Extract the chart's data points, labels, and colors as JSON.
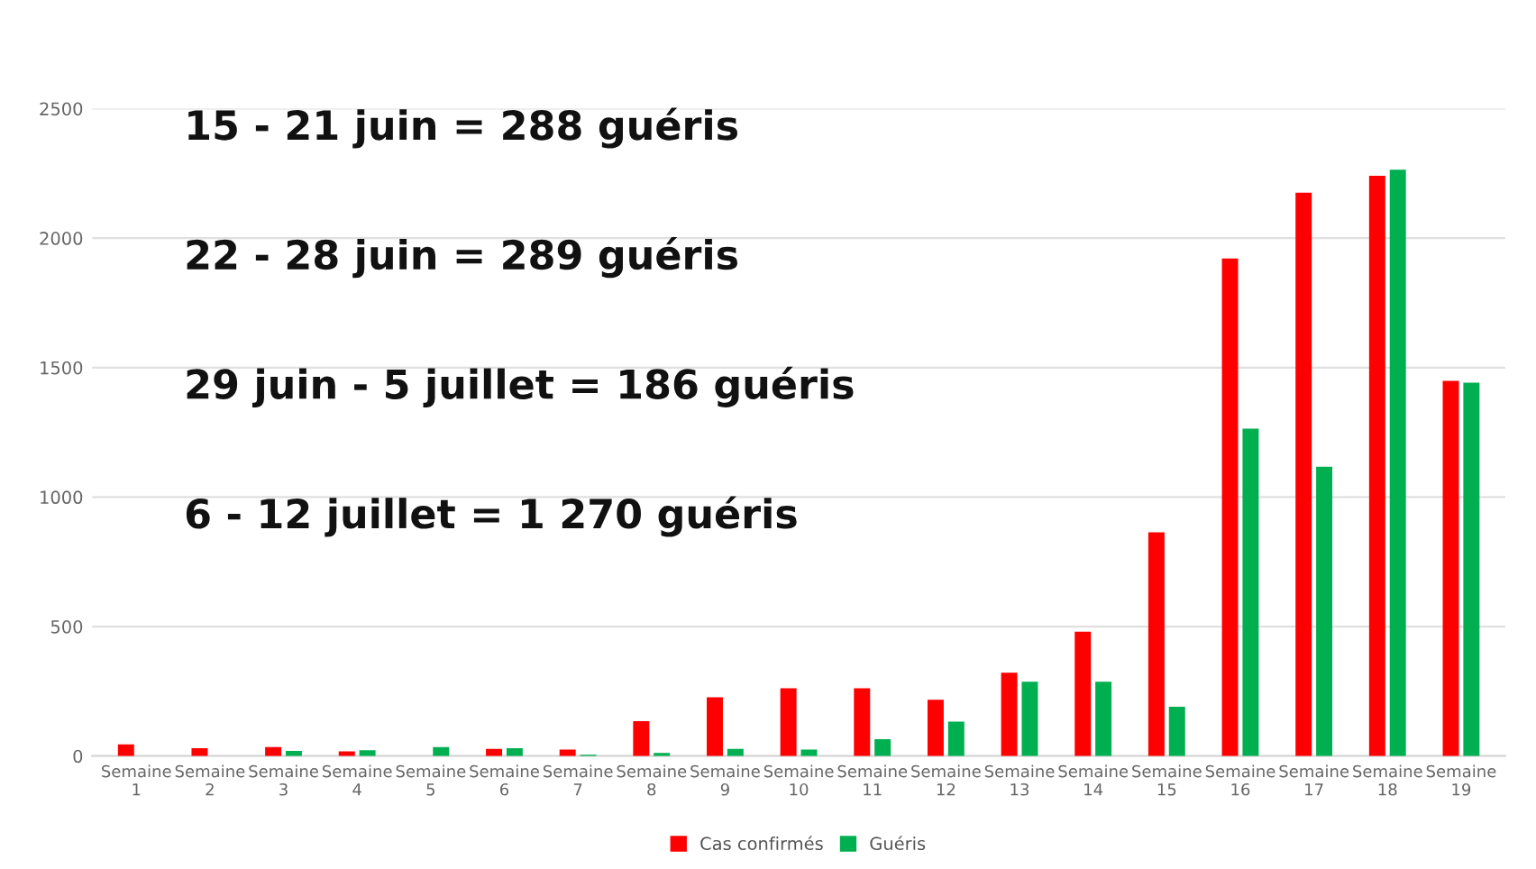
{
  "chart_data": {
    "type": "bar",
    "categories": [
      "Semaine\n1",
      "Semaine\n2",
      "Semaine\n3",
      "Semaine\n4",
      "Semaine\n5",
      "Semaine\n6",
      "Semaine\n7",
      "Semaine\n8",
      "Semaine\n9",
      "Semaine\n10",
      "Semaine\n11",
      "Semaine\n12",
      "Semaine\n13",
      "Semaine\n14",
      "Semaine\n15",
      "Semaine\n16",
      "Semaine\n17",
      "Semaine\n18",
      "Semaine\n19"
    ],
    "series": [
      {
        "name": "Cas confirmés",
        "color": "#ff0000",
        "values": [
          45,
          30,
          35,
          18,
          null,
          28,
          25,
          135,
          227,
          262,
          262,
          217,
          322,
          480,
          864,
          1921,
          2175,
          2241,
          1449
        ]
      },
      {
        "name": "Guéris",
        "color": "#00b050",
        "values": [
          null,
          null,
          20,
          22,
          35,
          30,
          5,
          12,
          28,
          25,
          65,
          133,
          287,
          287,
          190,
          1264,
          1117,
          2264,
          1442
        ]
      }
    ],
    "annotations": [
      "15 - 21 juin = 288 guéris",
      "22 - 28 juin = 289 guéris",
      "29 juin - 5 juillet = 186 guéris",
      "6 - 12 juillet = 1 270 guéris"
    ],
    "ylim": [
      0,
      2500
    ],
    "yticks": [
      0,
      500,
      1000,
      1500,
      2000,
      2500
    ],
    "grid": "y",
    "legend": "bottom"
  }
}
